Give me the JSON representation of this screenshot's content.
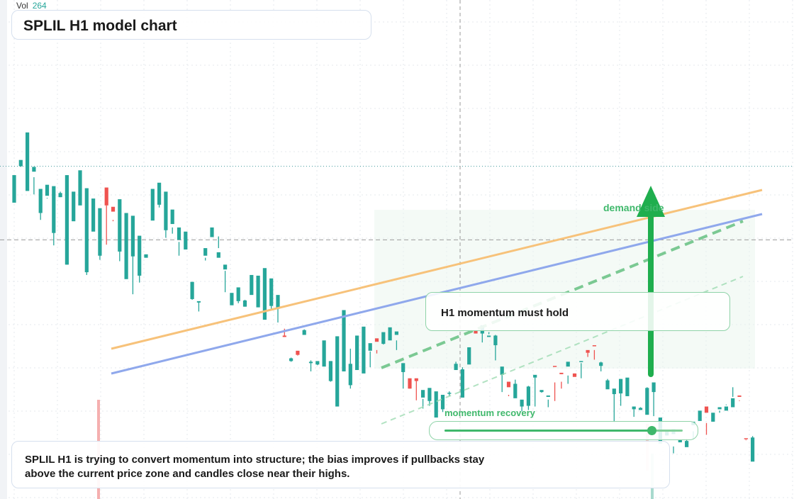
{
  "header": {
    "vol_label": "Vol",
    "vol_value": "264",
    "title": "SPLIL H1 model chart"
  },
  "annotations": {
    "callout": "H1 momentum must hold",
    "demand_label": "demand side",
    "momentum_label": "momentum recovery",
    "momentum_level": 0.87,
    "note": "SPLIL H1 is trying to convert momentum into structure; the bias improves if pullbacks stay above the current price zone and candles close near their highs."
  },
  "colors": {
    "up": "#26a69a",
    "down": "#ef5350",
    "trend_orange": "#f7c27a",
    "trend_blue": "#8fa8ec",
    "accent_green": "#3fb86b",
    "zone_fill": "#e6f5ea"
  },
  "chart_data": {
    "type": "candlestick",
    "title": "SPLIL H1 model chart",
    "xlabel": "",
    "ylabel": "",
    "ylim": [
      0,
      704
    ],
    "reference_levels": {
      "resistance": 473,
      "current": 366
    },
    "candles": [
      [
        0,
        420,
        421,
        450,
        460
      ],
      [
        1,
        473,
        472,
        476,
        482
      ],
      [
        2,
        437,
        440,
        467,
        522
      ],
      [
        3,
        465,
        457,
        432,
        472
      ],
      [
        4,
        405,
        395,
        438,
        440
      ],
      [
        5,
        430,
        426,
        427,
        446
      ],
      [
        6,
        376,
        358,
        405,
        444
      ],
      [
        7,
        428,
        428,
        436,
        434
      ],
      [
        8,
        330,
        330,
        413,
        460
      ],
      [
        9,
        393,
        408,
        426,
        436
      ],
      [
        10,
        416,
        422,
        455,
        467
      ],
      [
        11,
        319,
        315,
        424,
        441
      ],
      [
        12,
        378,
        384,
        405,
        426
      ],
      [
        13,
        343,
        337,
        407,
        412
      ],
      [
        14,
        442,
        359,
        416,
        416
      ],
      [
        15,
        414,
        393,
        395,
        407
      ],
      [
        16,
        349,
        335,
        405,
        425
      ],
      [
        17,
        309,
        319,
        398,
        405
      ],
      [
        18,
        342,
        287,
        397,
        401
      ],
      [
        19,
        314,
        304,
        360,
        372
      ],
      [
        20,
        340,
        340,
        340,
        345
      ],
      [
        21,
        394,
        395,
        395,
        440
      ],
      [
        22,
        417,
        413,
        426,
        449
      ],
      [
        23,
        380,
        400,
        369,
        436
      ],
      [
        24,
        389,
        384,
        375,
        410
      ],
      [
        25,
        366,
        343,
        363,
        384
      ],
      [
        26,
        352,
        372,
        375,
        378
      ],
      [
        27,
        280,
        280,
        279,
        305
      ],
      [
        28,
        275,
        276,
        262,
        277
      ],
      [
        29,
        343,
        336,
        340,
        354
      ],
      [
        30,
        370,
        382,
        370,
        384
      ],
      [
        31,
        340,
        354,
        371,
        348
      ],
      [
        32,
        323,
        321,
        290,
        330
      ],
      [
        33,
        271,
        280,
        288,
        289
      ],
      [
        34,
        277,
        277,
        274,
        297
      ],
      [
        35,
        269,
        279,
        269,
        278
      ],
      [
        36,
        286,
        309,
        307,
        315
      ],
      [
        37,
        268,
        294,
        298,
        314
      ],
      [
        38,
        250,
        286,
        308,
        325
      ],
      [
        39,
        270,
        265,
        276,
        310
      ],
      [
        40,
        266,
        284,
        246,
        286
      ],
      [
        41,
        227,
        225,
        237,
        225
      ],
      [
        42,
        190,
        195,
        189,
        194
      ],
      [
        43,
        205,
        199,
        198,
        199
      ],
      [
        44,
        228,
        236,
        229,
        235
      ],
      [
        45,
        187,
        191,
        175,
        189
      ],
      [
        46,
        185,
        186,
        184,
        190
      ],
      [
        47,
        182,
        219,
        208,
        220
      ],
      [
        48,
        161,
        190,
        160,
        190
      ],
      [
        49,
        124,
        207,
        190,
        226
      ],
      [
        50,
        175,
        190,
        229,
        264
      ],
      [
        51,
        155,
        150,
        208,
        186
      ],
      [
        52,
        177,
        208,
        178,
        227
      ],
      [
        53,
        172,
        228,
        176,
        240
      ],
      [
        54,
        205,
        181,
        204,
        216
      ],
      [
        55,
        223,
        201,
        206,
        218
      ],
      [
        56,
        215,
        214,
        215,
        232
      ],
      [
        57,
        220,
        225,
        227,
        239
      ],
      [
        58,
        228,
        220,
        206,
        233
      ],
      [
        59,
        174,
        185,
        150,
        187
      ],
      [
        60,
        165,
        152,
        150,
        150
      ],
      [
        61,
        165,
        161,
        133,
        161
      ],
      [
        62,
        137,
        135,
        121,
        148
      ],
      [
        63,
        132,
        125,
        133,
        151
      ],
      [
        64,
        108,
        133,
        131,
        146
      ],
      [
        65,
        120,
        131,
        116,
        141
      ],
      [
        66,
        144,
        139,
        146,
        144
      ],
      [
        67,
        177,
        189,
        182,
        186
      ],
      [
        68,
        137,
        161,
        181,
        178
      ],
      [
        69,
        185,
        189,
        199,
        210
      ],
      [
        70,
        235,
        231,
        233,
        230
      ],
      [
        71,
        230,
        217,
        232,
        242
      ],
      [
        72,
        225,
        232,
        229,
        227
      ],
      [
        73,
        213,
        228,
        191,
        227
      ],
      [
        74,
        170,
        180,
        145,
        182
      ],
      [
        75,
        160,
        141,
        139,
        152
      ],
      [
        76,
        136,
        163,
        150,
        157
      ],
      [
        77,
        124,
        133,
        117,
        134
      ],
      [
        78,
        125,
        154,
        119,
        153
      ],
      [
        79,
        166,
        166,
        124,
        170
      ],
      [
        80,
        145,
        144,
        145,
        148
      ],
      [
        81,
        138,
        134,
        123,
        140
      ],
      [
        82,
        183,
        159,
        132,
        182
      ],
      [
        83,
        173,
        160,
        150,
        171
      ],
      [
        84,
        182,
        169,
        157,
        189
      ],
      [
        85,
        172,
        172,
        170,
        167
      ],
      [
        86,
        190,
        187,
        165,
        190
      ],
      [
        87,
        206,
        196,
        202,
        202
      ],
      [
        88,
        213,
        192,
        206,
        212
      ],
      [
        89,
        183,
        189,
        175,
        188
      ],
      [
        90,
        149,
        150,
        164,
        162
      ],
      [
        91,
        142,
        145,
        101,
        150
      ],
      [
        92,
        143,
        125,
        164,
        164
      ],
      [
        93,
        139,
        147,
        142,
        166
      ],
      [
        94,
        120,
        120,
        109,
        124
      ],
      [
        95,
        119,
        119,
        123,
        122
      ],
      [
        96,
        112,
        121,
        152,
        151
      ],
      [
        97,
        145,
        146,
        110,
        159
      ],
      [
        98,
        70,
        72,
        95,
        108
      ],
      [
        99,
        82,
        82,
        89,
        90
      ],
      [
        100,
        84,
        66,
        56,
        91
      ],
      [
        101,
        72,
        60,
        60,
        76
      ],
      [
        102,
        65,
        77,
        67,
        74
      ],
      [
        103,
        97,
        88,
        77,
        102
      ],
      [
        104,
        103,
        104,
        104,
        118
      ],
      [
        105,
        124,
        100,
        83,
        115
      ],
      [
        106,
        102,
        106,
        102,
        115
      ],
      [
        107,
        120,
        118,
        115,
        123
      ],
      [
        108,
        118,
        126,
        127,
        124
      ],
      [
        109,
        123,
        138,
        152,
        136
      ],
      [
        110,
        140,
        133,
        132,
        138
      ],
      [
        111,
        78,
        75,
        76,
        77
      ],
      [
        112,
        44,
        81,
        67,
        79
      ]
    ]
  }
}
